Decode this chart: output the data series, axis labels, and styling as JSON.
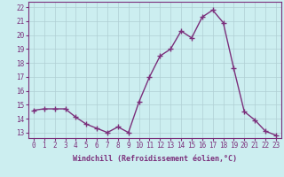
{
  "x": [
    0,
    1,
    2,
    3,
    4,
    5,
    6,
    7,
    8,
    9,
    10,
    11,
    12,
    13,
    14,
    15,
    16,
    17,
    18,
    19,
    20,
    21,
    22,
    23
  ],
  "y": [
    14.6,
    14.7,
    14.7,
    14.7,
    14.1,
    13.6,
    13.3,
    13.0,
    13.4,
    13.0,
    15.2,
    17.0,
    18.5,
    19.0,
    20.3,
    19.8,
    21.3,
    21.8,
    20.9,
    17.6,
    14.5,
    13.9,
    13.1,
    12.8
  ],
  "line_color": "#7b2f7b",
  "marker": "+",
  "marker_size": 4,
  "bg_color": "#cceef0",
  "grid_color": "#b0cfd4",
  "xlabel": "Windchill (Refroidissement éolien,°C)",
  "xlabel_color": "#7b2f7b",
  "tick_color": "#7b2f7b",
  "ylabel_ticks": [
    13,
    14,
    15,
    16,
    17,
    18,
    19,
    20,
    21,
    22
  ],
  "ylim": [
    12.6,
    22.4
  ],
  "xlim": [
    -0.5,
    23.5
  ],
  "xticks": [
    0,
    1,
    2,
    3,
    4,
    5,
    6,
    7,
    8,
    9,
    10,
    11,
    12,
    13,
    14,
    15,
    16,
    17,
    18,
    19,
    20,
    21,
    22,
    23
  ],
  "tick_fontsize": 5.5,
  "xlabel_fontsize": 6.0,
  "linewidth": 1.0,
  "marker_linewidth": 1.0
}
